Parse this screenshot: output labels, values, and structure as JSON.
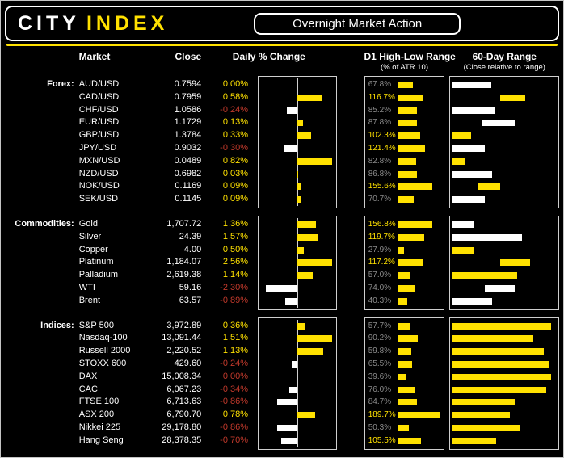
{
  "header": {
    "logo_city": "CITY",
    "logo_index": "INDEX",
    "title": "Overnight Market Action"
  },
  "columns": {
    "market": "Market",
    "close": "Close",
    "daily": "Daily % Change",
    "d1": "D1 High-Low Range",
    "d1_sub": "(% of ATR 10)",
    "range60": "60-Day Range",
    "range60_sub": "(Close relative to range)"
  },
  "colors": {
    "positive": "#ffe100",
    "negative": "#c0392b",
    "bar_positive": "#ffe100",
    "bar_negative": "#ffffff",
    "d1_high": "#ffe100",
    "d1_low": "#8c8c8c"
  },
  "chart_data": {
    "type": "table",
    "title": "Overnight Market Action",
    "columns": [
      "Market",
      "Close",
      "Daily % Change",
      "D1 High-Low Range (% of ATR 10)",
      "60-Day Range (Close relative to range)"
    ],
    "d1_axis_max": 200,
    "groups": [
      {
        "label": "Forex:",
        "rows": [
          {
            "market": "AUD/USD",
            "close": "0.7594",
            "daily": 0.0,
            "daily_label": "0.00%",
            "neg": false,
            "d1": 67.8,
            "d1_label": "67.8%",
            "r60": [
              0,
              37
            ],
            "r60_tone": "low"
          },
          {
            "market": "CAD/USD",
            "close": "0.7959",
            "daily": 0.58,
            "daily_label": "0.58%",
            "neg": false,
            "d1": 116.7,
            "d1_label": "116.7%",
            "r60": [
              46,
              70
            ],
            "r60_tone": "high"
          },
          {
            "market": "CHF/USD",
            "close": "1.0586",
            "daily": -0.24,
            "daily_label": "-0.24%",
            "neg": true,
            "d1": 85.2,
            "d1_label": "85.2%",
            "r60": [
              0,
              40
            ],
            "r60_tone": "low"
          },
          {
            "market": "EUR/USD",
            "close": "1.1729",
            "daily": 0.13,
            "daily_label": "0.13%",
            "neg": false,
            "d1": 87.8,
            "d1_label": "87.8%",
            "r60": [
              28,
              60
            ],
            "r60_tone": "low"
          },
          {
            "market": "GBP/USD",
            "close": "1.3784",
            "daily": 0.33,
            "daily_label": "0.33%",
            "neg": false,
            "d1": 102.3,
            "d1_label": "102.3%",
            "r60": [
              0,
              18
            ],
            "r60_tone": "high"
          },
          {
            "market": "JPY/USD",
            "close": "0.9032",
            "daily": -0.3,
            "daily_label": "-0.30%",
            "neg": true,
            "d1": 121.4,
            "d1_label": "121.4%",
            "r60": [
              0,
              31
            ],
            "r60_tone": "low"
          },
          {
            "market": "MXN/USD",
            "close": "0.0489",
            "daily": 0.82,
            "daily_label": "0.82%",
            "neg": false,
            "d1": 82.8,
            "d1_label": "82.8%",
            "r60": [
              0,
              12
            ],
            "r60_tone": "high"
          },
          {
            "market": "NZD/USD",
            "close": "0.6982",
            "daily": 0.03,
            "daily_label": "0.03%",
            "neg": false,
            "d1": 86.8,
            "d1_label": "86.8%",
            "r60": [
              0,
              38
            ],
            "r60_tone": "low"
          },
          {
            "market": "NOK/USD",
            "close": "0.1169",
            "daily": 0.09,
            "daily_label": "0.09%",
            "neg": false,
            "d1": 155.6,
            "d1_label": "155.6%",
            "r60": [
              24,
              46
            ],
            "r60_tone": "high"
          },
          {
            "market": "SEK/USD",
            "close": "0.1145",
            "daily": 0.09,
            "daily_label": "0.09%",
            "neg": false,
            "d1": 70.7,
            "d1_label": "70.7%",
            "r60": [
              0,
              31
            ],
            "r60_tone": "low"
          }
        ]
      },
      {
        "label": "Commodities:",
        "rows": [
          {
            "market": "Gold",
            "close": "1,707.72",
            "daily": 1.36,
            "daily_label": "1.36%",
            "neg": false,
            "d1": 156.8,
            "d1_label": "156.8%",
            "r60": [
              0,
              20
            ],
            "r60_tone": "low"
          },
          {
            "market": "Silver",
            "close": "24.39",
            "daily": 1.57,
            "daily_label": "1.57%",
            "neg": false,
            "d1": 119.7,
            "d1_label": "119.7%",
            "r60": [
              0,
              67
            ],
            "r60_tone": "low"
          },
          {
            "market": "Copper",
            "close": "4.00",
            "daily": 0.5,
            "daily_label": "0.50%",
            "neg": false,
            "d1": 27.9,
            "d1_label": "27.9%",
            "r60": [
              0,
              20
            ],
            "r60_tone": "high"
          },
          {
            "market": "Platinum",
            "close": "1,184.07",
            "daily": 2.56,
            "daily_label": "2.56%",
            "neg": false,
            "d1": 117.2,
            "d1_label": "117.2%",
            "r60": [
              46,
              75
            ],
            "r60_tone": "high"
          },
          {
            "market": "Palladium",
            "close": "2,619.38",
            "daily": 1.14,
            "daily_label": "1.14%",
            "neg": false,
            "d1": 57.0,
            "d1_label": "57.0%",
            "r60": [
              0,
              62
            ],
            "r60_tone": "high"
          },
          {
            "market": "WTI",
            "close": "59.16",
            "daily": -2.3,
            "daily_label": "-2.30%",
            "neg": true,
            "d1": 74.0,
            "d1_label": "74.0%",
            "r60": [
              31,
              60
            ],
            "r60_tone": "low"
          },
          {
            "market": "Brent",
            "close": "63.57",
            "daily": -0.89,
            "daily_label": "-0.89%",
            "neg": true,
            "d1": 40.3,
            "d1_label": "40.3%",
            "r60": [
              0,
              38
            ],
            "r60_tone": "low"
          }
        ]
      },
      {
        "label": "Indices:",
        "rows": [
          {
            "market": "S&P 500",
            "close": "3,972.89",
            "daily": 0.36,
            "daily_label": "0.36%",
            "neg": false,
            "d1": 57.7,
            "d1_label": "57.7%",
            "r60": [
              0,
              95
            ],
            "r60_tone": "high"
          },
          {
            "market": "Nasdaq-100",
            "close": "13,091.44",
            "daily": 1.51,
            "daily_label": "1.51%",
            "neg": false,
            "d1": 90.2,
            "d1_label": "90.2%",
            "r60": [
              0,
              78
            ],
            "r60_tone": "high"
          },
          {
            "market": "Russell 2000",
            "close": "2,220.52",
            "daily": 1.13,
            "daily_label": "1.13%",
            "neg": false,
            "d1": 59.8,
            "d1_label": "59.8%",
            "r60": [
              0,
              88
            ],
            "r60_tone": "high"
          },
          {
            "market": "STOXX 600",
            "close": "429.60",
            "daily": -0.24,
            "daily_label": "-0.24%",
            "neg": true,
            "d1": 65.5,
            "d1_label": "65.5%",
            "r60": [
              0,
              93
            ],
            "r60_tone": "high"
          },
          {
            "market": "DAX",
            "close": "15,008.34",
            "daily": 0.0,
            "daily_label": "0.00%",
            "neg": true,
            "d1": 39.6,
            "d1_label": "39.6%",
            "r60": [
              0,
              95
            ],
            "r60_tone": "high"
          },
          {
            "market": "CAC",
            "close": "6,067.23",
            "daily": -0.34,
            "daily_label": "-0.34%",
            "neg": true,
            "d1": 76.0,
            "d1_label": "76.0%",
            "r60": [
              0,
              90
            ],
            "r60_tone": "high"
          },
          {
            "market": "FTSE 100",
            "close": "6,713.63",
            "daily": -0.86,
            "daily_label": "-0.86%",
            "neg": true,
            "d1": 84.7,
            "d1_label": "84.7%",
            "r60": [
              0,
              60
            ],
            "r60_tone": "high"
          },
          {
            "market": "ASX 200",
            "close": "6,790.70",
            "daily": 0.78,
            "daily_label": "0.78%",
            "neg": false,
            "d1": 189.7,
            "d1_label": "189.7%",
            "r60": [
              0,
              55
            ],
            "r60_tone": "high"
          },
          {
            "market": "Nikkei 225",
            "close": "29,178.80",
            "daily": -0.86,
            "daily_label": "-0.86%",
            "neg": true,
            "d1": 50.3,
            "d1_label": "50.3%",
            "r60": [
              0,
              65
            ],
            "r60_tone": "high"
          },
          {
            "market": "Hang Seng",
            "close": "28,378.35",
            "daily": -0.7,
            "daily_label": "-0.70%",
            "neg": true,
            "d1": 105.5,
            "d1_label": "105.5%",
            "r60": [
              0,
              42
            ],
            "r60_tone": "high"
          }
        ]
      }
    ]
  }
}
